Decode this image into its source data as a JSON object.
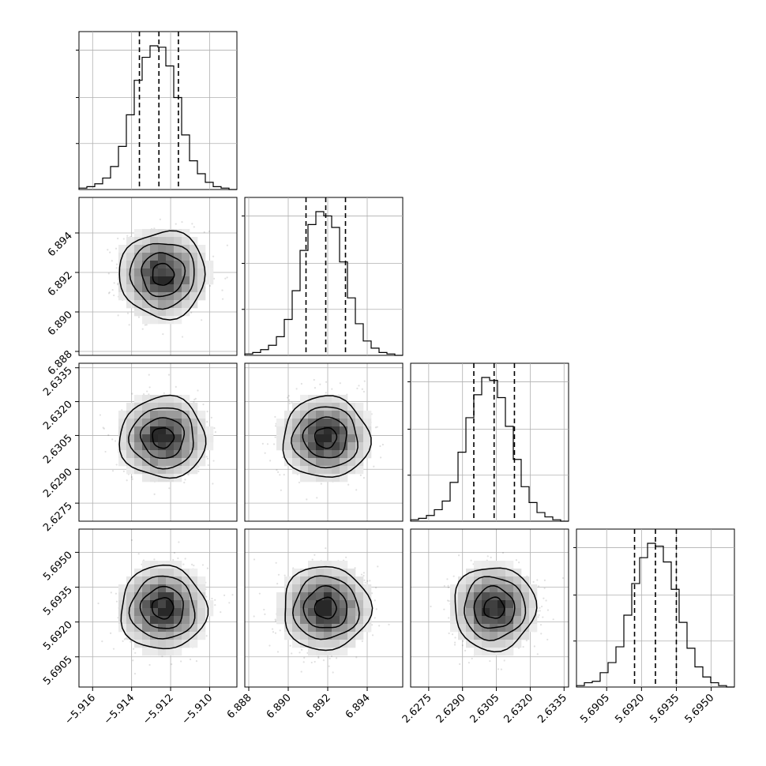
{
  "chart_data": {
    "type": "corner",
    "grid": true,
    "quantiles": [
      0.16,
      0.5,
      0.84
    ],
    "parameters": [
      {
        "mean": -5.9124,
        "sd": 0.0011,
        "range": [
          -5.9167,
          -5.9086
        ],
        "ticks": [
          -5.916,
          -5.914,
          -5.912,
          -5.91
        ],
        "tick_labels": [
          "−5.916",
          "−5.914",
          "−5.912",
          "−5.910"
        ],
        "quantile_values": [
          -5.9136,
          -5.9126,
          -5.9116
        ],
        "hist_counts": [
          1,
          2,
          4,
          8,
          16,
          30,
          52,
          76,
          92,
          100,
          99,
          86,
          64,
          38,
          20,
          11,
          5,
          2,
          1,
          0
        ]
      },
      {
        "mean": 6.8919,
        "sd": 0.0011,
        "range": [
          6.8878,
          6.8958
        ],
        "ticks": [
          6.888,
          6.89,
          6.892,
          6.894
        ],
        "tick_labels": [
          "6.888",
          "6.890",
          "6.892",
          "6.894"
        ],
        "quantile_values": [
          6.8909,
          6.8919,
          6.8929
        ],
        "hist_counts": [
          1,
          2,
          4,
          7,
          13,
          25,
          45,
          73,
          91,
          100,
          97,
          89,
          65,
          40,
          22,
          10,
          5,
          2,
          1,
          0
        ]
      },
      {
        "mean": 2.6304,
        "sd": 0.0009,
        "range": [
          2.6267,
          2.6337
        ],
        "ticks": [
          2.6275,
          2.629,
          2.6305,
          2.632,
          2.6335
        ],
        "tick_labels": [
          "2.6275",
          "2.6290",
          "2.6305",
          "2.6320",
          "2.6335"
        ],
        "quantile_values": [
          2.6295,
          2.6304,
          2.6313
        ],
        "hist_counts": [
          1,
          2,
          4,
          8,
          14,
          27,
          48,
          72,
          88,
          100,
          98,
          86,
          66,
          43,
          24,
          13,
          6,
          3,
          1,
          0
        ]
      },
      {
        "mean": 5.6926,
        "sd": 0.0009,
        "range": [
          5.6892,
          5.696
        ],
        "ticks": [
          5.6905,
          5.692,
          5.6935,
          5.695
        ],
        "tick_labels": [
          "5.6905",
          "5.6920",
          "5.6935",
          "5.6950"
        ],
        "quantile_values": [
          5.6917,
          5.6926,
          5.6935
        ],
        "hist_counts": [
          1,
          3,
          4,
          10,
          17,
          28,
          50,
          72,
          90,
          100,
          98,
          87,
          68,
          45,
          27,
          14,
          7,
          3,
          1,
          0
        ]
      }
    ]
  }
}
